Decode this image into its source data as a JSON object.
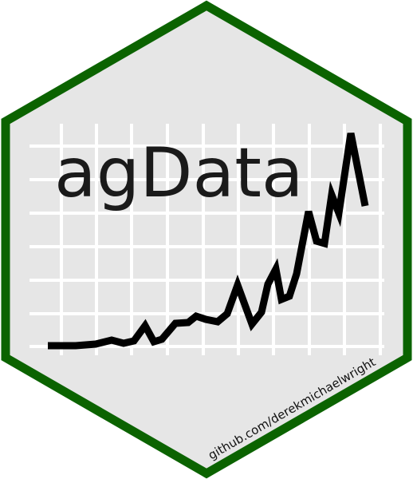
{
  "title": "agData",
  "url": "github.com/derekmichaelwright",
  "colors": {
    "border": "#0b6300",
    "fill": "#e6e6e6",
    "grid": "#ffffff",
    "line": "#000000"
  },
  "icons": [
    "hexagon-sticker",
    "trend-line-chart"
  ]
}
